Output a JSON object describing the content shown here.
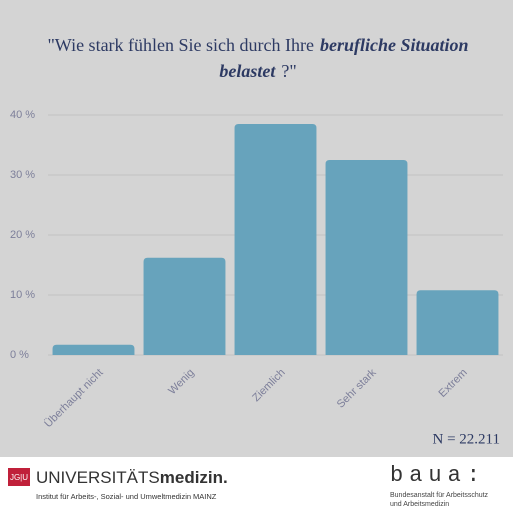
{
  "chart_data": {
    "type": "bar",
    "title": [
      "\"Wie stark fühlen Sie sich durch Ihre",
      "berufliche Situation",
      "belastet",
      "?\""
    ],
    "categories": [
      "Überhaupt nicht",
      "Wenig",
      "Ziemlich",
      "Sehr stark",
      "Extrem"
    ],
    "values": [
      1.7,
      16.2,
      38.5,
      32.5,
      10.8
    ],
    "color": "#67a3bc",
    "ylim": [
      0,
      40
    ],
    "yticks": [
      {
        "value": 0,
        "label": "0 %"
      },
      {
        "value": 10,
        "label": "10 %"
      },
      {
        "value": 20,
        "label": "20 %"
      },
      {
        "value": 30,
        "label": "30 %"
      },
      {
        "value": 40,
        "label": "40 %"
      }
    ],
    "grid": true,
    "annotation": "N = 22.211"
  },
  "footer": {
    "left": {
      "badge": "JG|U",
      "name_a": "UNIVERSITÄTS",
      "name_b": "medizin.",
      "institute": "Institut für Arbeits-, Sozial- und Umweltmedizin",
      "city": "MAINZ"
    },
    "right": {
      "logo": "baua:",
      "line1": "Bundesanstalt für Arbeitsschutz",
      "line2": "und Arbeitsmedizin"
    }
  }
}
